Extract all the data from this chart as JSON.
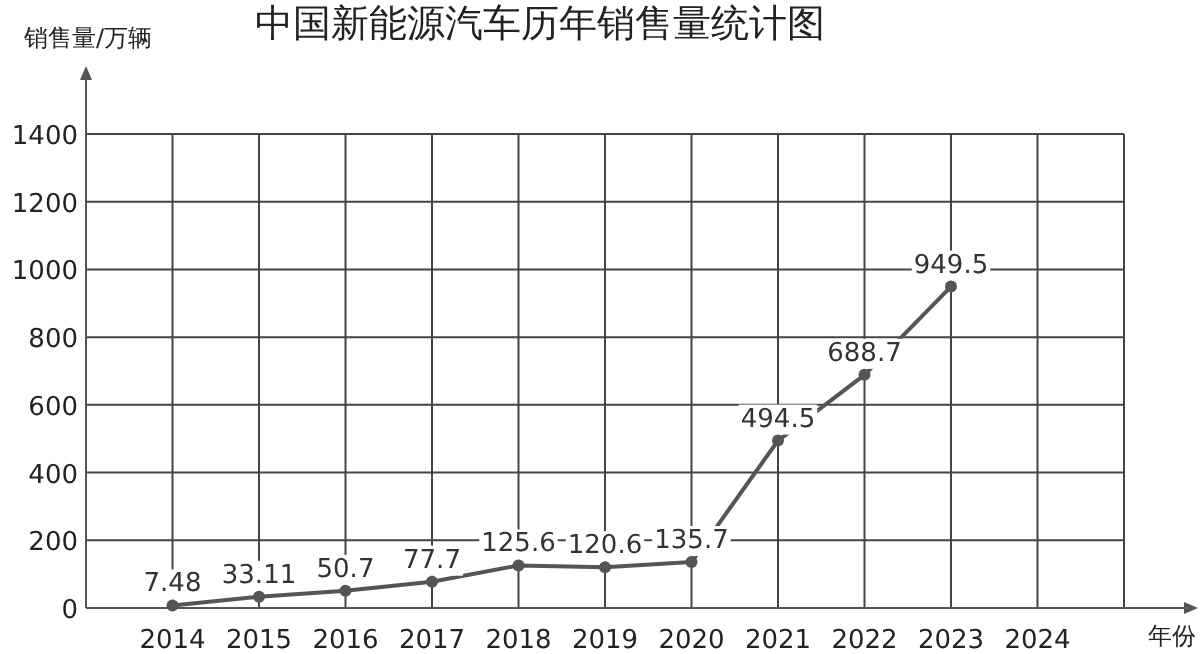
{
  "chart_data": {
    "type": "line",
    "title": "中国新能源汽车历年销售量统计图",
    "ylabel": "销售量/万辆",
    "xlabel": "年份",
    "categories": [
      "2014",
      "2015",
      "2016",
      "2017",
      "2018",
      "2019",
      "2020",
      "2021",
      "2022",
      "2023",
      "2024"
    ],
    "series": [
      {
        "color": "#555555",
        "values": [
          7.48,
          33.11,
          50.7,
          77.7,
          125.6,
          120.6,
          135.7,
          494.5,
          688.7,
          949.5,
          null
        ]
      }
    ],
    "ylim": [
      0,
      1400
    ],
    "yticks": [
      0,
      200,
      400,
      600,
      800,
      1000,
      1200,
      1400
    ],
    "grid": true,
    "marker": "circle",
    "line_style": "solid",
    "data_labels": true
  }
}
